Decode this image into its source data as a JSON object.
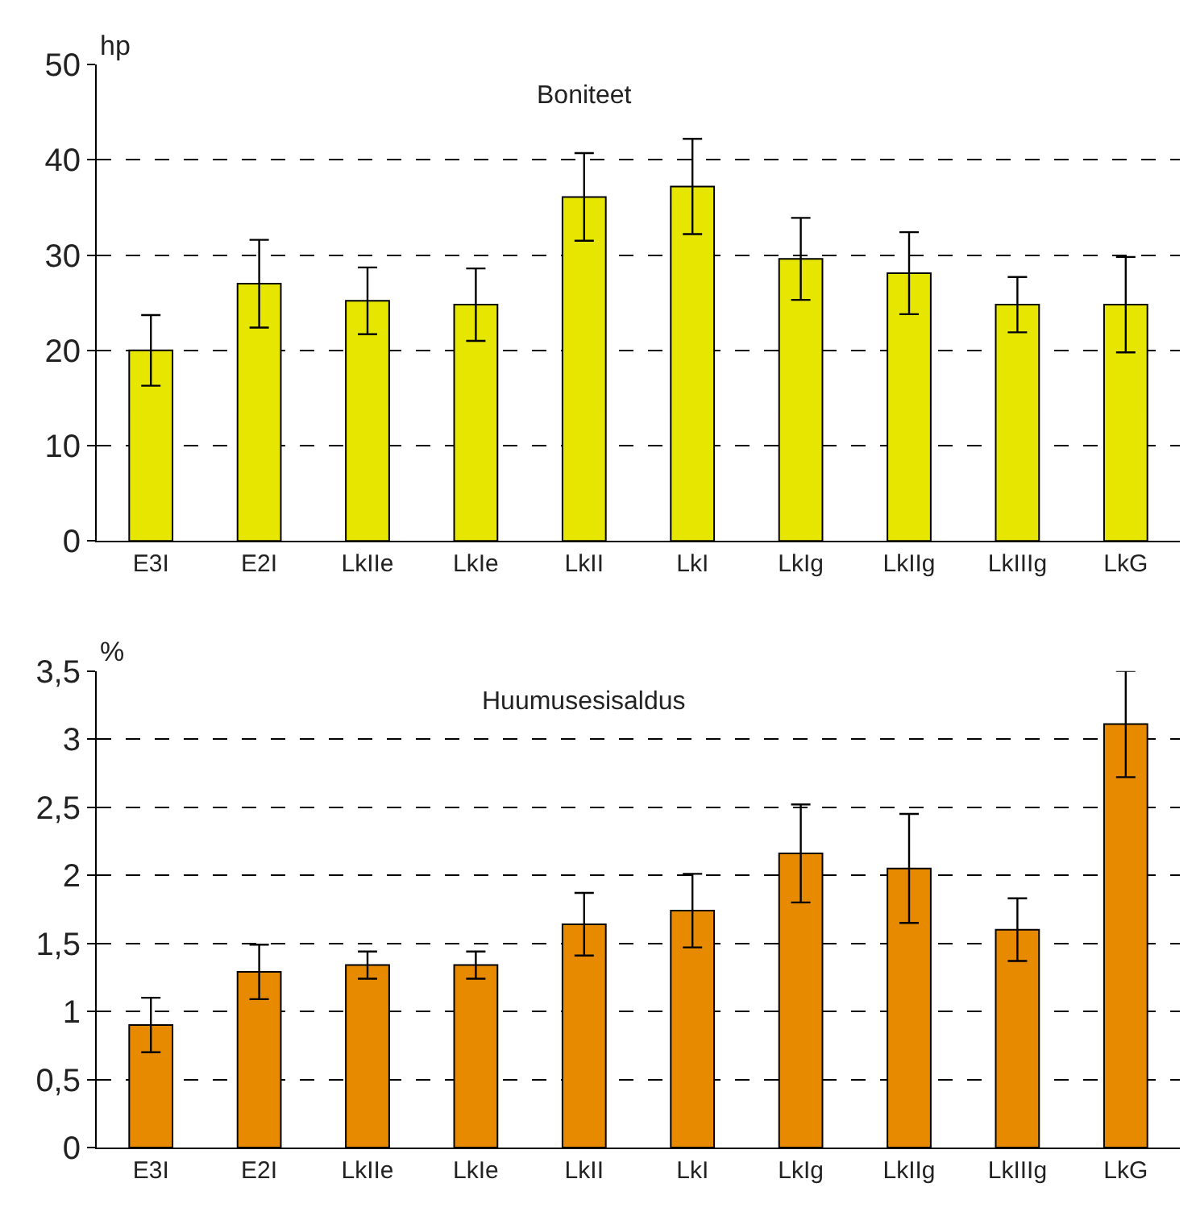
{
  "chart_data": [
    {
      "type": "bar",
      "title": "Boniteet",
      "ylabel": "hp",
      "categories": [
        "E3I",
        "E2I",
        "LkIIe",
        "LkIe",
        "LkII",
        "LkI",
        "LkIg",
        "LkIIg",
        "LkIIIg",
        "LkG"
      ],
      "values": [
        20,
        27,
        25.2,
        24.8,
        36.1,
        37.2,
        29.6,
        28.1,
        24.8,
        24.8
      ],
      "errors": [
        3.7,
        4.6,
        3.5,
        3.8,
        4.6,
        5,
        4.3,
        4.3,
        2.9,
        5
      ],
      "color": "#e6e600",
      "ylim": [
        0,
        50
      ],
      "yticks": [
        0,
        10,
        20,
        30,
        40,
        50
      ],
      "grid": "y"
    },
    {
      "type": "bar",
      "title": "Huumusesisaldus",
      "ylabel": "%",
      "categories": [
        "E3I",
        "E2I",
        "LkIIe",
        "LkIe",
        "LkII",
        "LkI",
        "LkIg",
        "LkIIg",
        "LkIIIg",
        "LkG"
      ],
      "values": [
        0.9,
        1.29,
        1.34,
        1.34,
        1.64,
        1.74,
        2.16,
        2.05,
        1.6,
        3.11
      ],
      "errors": [
        0.2,
        0.2,
        0.1,
        0.1,
        0.23,
        0.27,
        0.36,
        0.4,
        0.23,
        0.39
      ],
      "color": "#e88a00",
      "ylim": [
        0,
        3.5
      ],
      "yticks": [
        0,
        {
          "value": 0.5,
          "label": "0,5"
        },
        1,
        {
          "value": 1.5,
          "label": "1,5"
        },
        2,
        {
          "value": 2.5,
          "label": "2,5"
        },
        3,
        {
          "value": 3.5,
          "label": "3,5"
        }
      ],
      "grid": "y"
    }
  ]
}
